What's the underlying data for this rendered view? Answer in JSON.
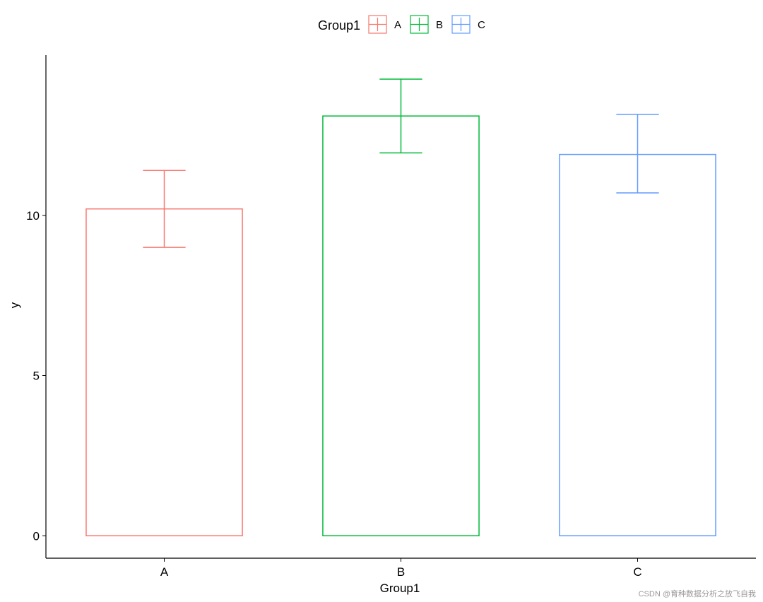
{
  "chart_data": {
    "type": "bar",
    "categories": [
      "A",
      "B",
      "C"
    ],
    "values": [
      10.2,
      13.1,
      11.9
    ],
    "error_low": [
      9.0,
      11.95,
      10.7
    ],
    "error_high": [
      11.4,
      14.25,
      13.15
    ],
    "colors": [
      "#F8766D",
      "#00BA38",
      "#619CFF"
    ],
    "xlabel": "Group1",
    "ylabel": "y",
    "ylim": [
      -0.7,
      15.0
    ],
    "yticks": [
      0,
      5,
      10
    ],
    "grid": false,
    "bar_style": "outline",
    "legend": {
      "title": "Group1",
      "position": "top",
      "entries": [
        "A",
        "B",
        "C"
      ]
    }
  },
  "watermark": "CSDN @育种数据分析之放飞自我"
}
